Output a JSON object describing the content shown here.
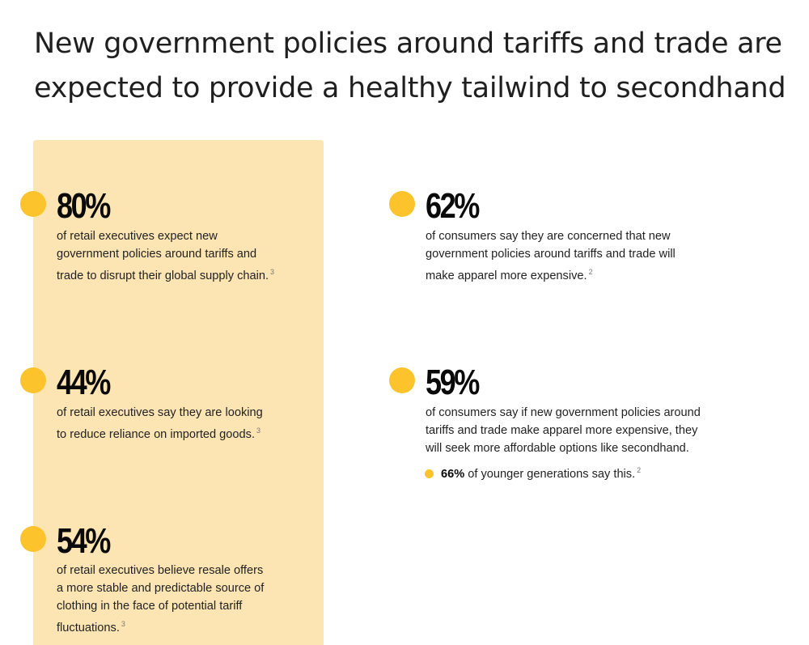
{
  "headline": {
    "line1": "New government policies around tariffs and trade are",
    "line2": "expected to provide a healthy tailwind to secondhand"
  },
  "colors": {
    "accent": "#fcc32c",
    "panel": "#fde5b3"
  },
  "stats": [
    {
      "value": "80%",
      "lines": [
        "of retail executives expect new",
        "government policies around tariffs and",
        "trade to disrupt their global supply chain."
      ],
      "footnote": "3"
    },
    {
      "value": "44%",
      "lines": [
        "of retail executives say they are looking",
        "to reduce reliance on imported goods."
      ],
      "footnote": "3"
    },
    {
      "value": "54%",
      "lines": [
        "of retail executives believe resale offers",
        "a more stable and predictable source of",
        "clothing in the face of potential tariff",
        "fluctuations."
      ],
      "footnote": "3"
    },
    {
      "value": "62%",
      "lines": [
        "of consumers say they are concerned that new",
        "government policies around tariffs and trade will",
        "make apparel more expensive."
      ],
      "footnote": "2"
    },
    {
      "value": "59%",
      "lines": [
        "of consumers say if new government policies around",
        "tariffs and trade make apparel more expensive, they",
        "will seek more affordable options like secondhand."
      ],
      "footnote": ""
    }
  ],
  "note": {
    "value": "66%",
    "text": "of younger generations say this.",
    "footnote": "2"
  }
}
